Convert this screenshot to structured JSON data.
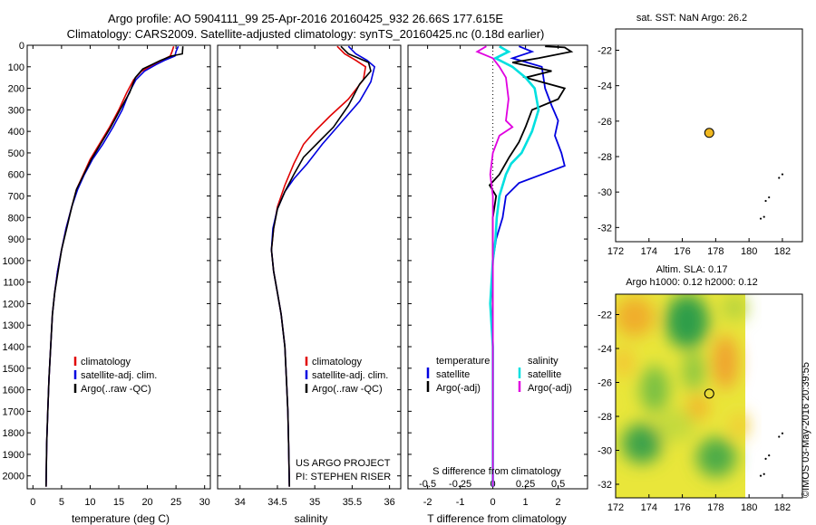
{
  "titles": {
    "line1": "Argo profile: AO 5904111_99 25-Apr-2016 20160425_932 26.66S 177.615E",
    "line2": "Climatology: CARS2009. Satellite-adjusted climatology: synTS_20160425.nc (0.18d earlier)"
  },
  "depth_ticks": [
    "0",
    "100",
    "200",
    "300",
    "400",
    "500",
    "600",
    "700",
    "800",
    "900",
    "1000",
    "1100",
    "1200",
    "1300",
    "1400",
    "1500",
    "1600",
    "1700",
    "1800",
    "1900",
    "2000"
  ],
  "temp_panel": {
    "xlabel": "temperature (deg C)",
    "xticks": [
      "0",
      "5",
      "10",
      "15",
      "20",
      "25",
      "30"
    ],
    "legend": [
      "climatology",
      "satellite-adj. clim.",
      "Argo(..raw -QC)"
    ]
  },
  "sal_panel": {
    "xlabel": "salinity",
    "xticks": [
      "34",
      "34.5",
      "35",
      "35.5",
      "36"
    ],
    "legend": [
      "climatology",
      "satellite-adj. clim.",
      "Argo(..raw -QC)"
    ],
    "project_line1": "US ARGO PROJECT",
    "project_line2": "PI: STEPHEN RISER"
  },
  "diff_panel": {
    "xlabel": "T difference from climatology",
    "top_label": "S difference from climatology",
    "xticks_t": [
      "-2",
      "-1",
      "0",
      "1",
      "2"
    ],
    "xticks_s": [
      "-0.5",
      "-0.25",
      "0",
      "0.25",
      "0.5"
    ],
    "legend_temp_head": "temperature",
    "legend_sal_head": "salinity",
    "legend_temp": [
      "satellite",
      "Argo(-adj)"
    ],
    "legend_sal": [
      "satellite",
      "Argo(-adj)"
    ]
  },
  "map_sst": {
    "title": "sat. SST: NaN Argo: 26.2",
    "xticks": [
      "172",
      "174",
      "176",
      "178",
      "180",
      "182"
    ],
    "yticks": [
      "-22",
      "-24",
      "-26",
      "-28",
      "-30",
      "-32"
    ]
  },
  "map_sla": {
    "title1": "Altim. SLA: 0.17",
    "title2": "Argo h1000: 0.12 h2000: 0.12",
    "xticks": [
      "172",
      "174",
      "176",
      "178",
      "180",
      "182"
    ],
    "yticks": [
      "-22",
      "-24",
      "-26",
      "-28",
      "-30",
      "-32"
    ]
  },
  "side_stamp": "©IMOS 03-May-2016 20:39:55",
  "colors": {
    "clim": "#e00000",
    "sat": "#0000e0",
    "argo": "#000000",
    "sal_sat": "#00e0e0",
    "sal_argo": "#e000e0",
    "float_marker": "#f0b820"
  },
  "chart_data": [
    {
      "type": "line",
      "panel": "temperature",
      "ylim": [
        2060,
        0
      ],
      "xlim": [
        -1,
        31
      ],
      "series": [
        {
          "name": "climatology",
          "points": [
            [
              24.6,
              5
            ],
            [
              24.3,
              30
            ],
            [
              24.0,
              50
            ],
            [
              22.5,
              70
            ],
            [
              21.0,
              90
            ],
            [
              19.0,
              120
            ],
            [
              17.6,
              160
            ],
            [
              16.4,
              220
            ],
            [
              15.0,
              300
            ],
            [
              13.4,
              380
            ],
            [
              11.6,
              460
            ],
            [
              10.0,
              530
            ],
            [
              8.8,
              600
            ],
            [
              7.6,
              670
            ],
            [
              6.8,
              750
            ],
            [
              5.8,
              850
            ],
            [
              5.0,
              950
            ],
            [
              4.3,
              1050
            ],
            [
              3.8,
              1150
            ],
            [
              3.4,
              1250
            ],
            [
              3.1,
              1400
            ],
            [
              2.8,
              1550
            ],
            [
              2.6,
              1700
            ],
            [
              2.4,
              1850
            ],
            [
              2.3,
              2050
            ]
          ]
        },
        {
          "name": "satellite-adj. clim.",
          "points": [
            [
              25.4,
              5
            ],
            [
              25.0,
              30
            ],
            [
              24.8,
              50
            ],
            [
              23.0,
              70
            ],
            [
              21.5,
              90
            ],
            [
              19.5,
              120
            ],
            [
              18.0,
              160
            ],
            [
              16.8,
              220
            ],
            [
              15.6,
              300
            ],
            [
              14.0,
              380
            ],
            [
              12.2,
              460
            ],
            [
              10.4,
              530
            ],
            [
              9.0,
              600
            ],
            [
              7.8,
              670
            ],
            [
              6.8,
              750
            ],
            [
              5.8,
              850
            ],
            [
              5.0,
              950
            ],
            [
              4.3,
              1050
            ],
            [
              3.8,
              1150
            ],
            [
              3.4,
              1250
            ],
            [
              3.1,
              1400
            ],
            [
              2.8,
              1550
            ],
            [
              2.6,
              1700
            ],
            [
              2.4,
              1850
            ],
            [
              2.3,
              2050
            ]
          ]
        },
        {
          "name": "Argo(..raw -QC)",
          "points": [
            [
              26.2,
              5
            ],
            [
              26.1,
              40
            ],
            [
              24.2,
              50
            ],
            [
              22.3,
              70
            ],
            [
              20.8,
              90
            ],
            [
              19.2,
              110
            ],
            [
              17.9,
              150
            ],
            [
              16.9,
              220
            ],
            [
              15.2,
              300
            ],
            [
              13.6,
              380
            ],
            [
              11.8,
              460
            ],
            [
              10.2,
              530
            ],
            [
              8.9,
              600
            ],
            [
              7.6,
              670
            ],
            [
              6.8,
              750
            ],
            [
              5.9,
              850
            ],
            [
              5.0,
              950
            ],
            [
              4.4,
              1050
            ],
            [
              3.8,
              1150
            ],
            [
              3.4,
              1250
            ],
            [
              3.1,
              1400
            ],
            [
              2.8,
              1550
            ],
            [
              2.6,
              1700
            ],
            [
              2.4,
              1850
            ],
            [
              2.3,
              2050
            ]
          ]
        }
      ]
    },
    {
      "type": "line",
      "panel": "salinity",
      "ylim": [
        2060,
        0
      ],
      "xlim": [
        33.7,
        36.15
      ],
      "series": [
        {
          "name": "climatology",
          "points": [
            [
              35.3,
              5
            ],
            [
              35.4,
              40
            ],
            [
              35.55,
              70
            ],
            [
              35.68,
              100
            ],
            [
              35.65,
              160
            ],
            [
              35.45,
              250
            ],
            [
              35.2,
              330
            ],
            [
              35.0,
              400
            ],
            [
              34.85,
              460
            ],
            [
              34.72,
              550
            ],
            [
              34.6,
              650
            ],
            [
              34.5,
              750
            ],
            [
              34.45,
              850
            ],
            [
              34.42,
              950
            ],
            [
              34.45,
              1050
            ],
            [
              34.5,
              1150
            ],
            [
              34.55,
              1250
            ],
            [
              34.6,
              1400
            ],
            [
              34.62,
              1550
            ],
            [
              34.64,
              1700
            ],
            [
              34.65,
              1850
            ],
            [
              34.66,
              2050
            ]
          ]
        },
        {
          "name": "satellite-adj. clim.",
          "points": [
            [
              35.45,
              5
            ],
            [
              35.55,
              40
            ],
            [
              35.7,
              70
            ],
            [
              35.8,
              100
            ],
            [
              35.75,
              170
            ],
            [
              35.6,
              260
            ],
            [
              35.35,
              360
            ],
            [
              35.1,
              460
            ],
            [
              34.9,
              550
            ],
            [
              34.72,
              620
            ],
            [
              34.6,
              680
            ],
            [
              34.5,
              760
            ],
            [
              34.44,
              850
            ],
            [
              34.42,
              950
            ],
            [
              34.45,
              1050
            ],
            [
              34.5,
              1150
            ],
            [
              34.55,
              1250
            ],
            [
              34.6,
              1400
            ],
            [
              34.62,
              1550
            ],
            [
              34.64,
              1700
            ],
            [
              34.65,
              1850
            ],
            [
              34.66,
              2050
            ]
          ]
        },
        {
          "name": "Argo(..raw -QC)",
          "points": [
            [
              35.35,
              5
            ],
            [
              35.45,
              40
            ],
            [
              35.72,
              80
            ],
            [
              35.75,
              120
            ],
            [
              35.6,
              180
            ],
            [
              35.45,
              280
            ],
            [
              35.25,
              380
            ],
            [
              35.05,
              450
            ],
            [
              34.85,
              520
            ],
            [
              34.72,
              600
            ],
            [
              34.6,
              680
            ],
            [
              34.5,
              760
            ],
            [
              34.45,
              850
            ],
            [
              34.42,
              950
            ],
            [
              34.45,
              1050
            ],
            [
              34.5,
              1150
            ],
            [
              34.55,
              1250
            ],
            [
              34.6,
              1400
            ],
            [
              34.62,
              1550
            ],
            [
              34.64,
              1700
            ],
            [
              34.65,
              1850
            ],
            [
              34.66,
              2050
            ]
          ]
        }
      ]
    },
    {
      "type": "line",
      "panel": "difference",
      "ylim": [
        2060,
        0
      ],
      "xlim_t": [
        -2.6,
        2.9
      ],
      "xlim_s": [
        -0.65,
        0.725
      ],
      "series": [
        {
          "name": "temperature satellite",
          "axis": "t",
          "points": [
            [
              0.8,
              5
            ],
            [
              1.2,
              30
            ],
            [
              0.6,
              60
            ],
            [
              1.5,
              100
            ],
            [
              1.6,
              200
            ],
            [
              1.8,
              280
            ],
            [
              2.0,
              350
            ],
            [
              1.9,
              420
            ],
            [
              2.1,
              500
            ],
            [
              2.2,
              560
            ],
            [
              1.5,
              600
            ],
            [
              0.8,
              640
            ],
            [
              0.4,
              700
            ],
            [
              0.3,
              800
            ],
            [
              0.1,
              900
            ],
            [
              0.0,
              1000
            ],
            [
              0.0,
              1200
            ],
            [
              0.0,
              1600
            ],
            [
              0.0,
              2050
            ]
          ]
        },
        {
          "name": "temperature Argo(-adj)",
          "axis": "t",
          "points": [
            [
              1.6,
              5
            ],
            [
              2.2,
              10
            ],
            [
              2.4,
              30
            ],
            [
              1.4,
              60
            ],
            [
              0.6,
              80
            ],
            [
              1.8,
              120
            ],
            [
              1.0,
              150
            ],
            [
              2.2,
              200
            ],
            [
              2.0,
              250
            ],
            [
              1.2,
              300
            ],
            [
              1.0,
              380
            ],
            [
              0.8,
              450
            ],
            [
              0.5,
              520
            ],
            [
              0.2,
              600
            ],
            [
              -0.1,
              650
            ],
            [
              0.1,
              700
            ],
            [
              0.0,
              800
            ],
            [
              0.0,
              900
            ],
            [
              0.0,
              1100
            ],
            [
              0.0,
              1400
            ],
            [
              0.0,
              2050
            ]
          ]
        },
        {
          "name": "salinity satellite",
          "axis": "s",
          "points": [
            [
              0.05,
              5
            ],
            [
              0.12,
              30
            ],
            [
              0.02,
              60
            ],
            [
              0.15,
              100
            ],
            [
              0.25,
              150
            ],
            [
              0.32,
              200
            ],
            [
              0.35,
              300
            ],
            [
              0.3,
              400
            ],
            [
              0.22,
              500
            ],
            [
              0.14,
              550
            ],
            [
              0.1,
              600
            ],
            [
              0.05,
              700
            ],
            [
              0.03,
              800
            ],
            [
              0.02,
              900
            ],
            [
              0.0,
              1000
            ],
            [
              -0.02,
              1200
            ],
            [
              0.0,
              1400
            ],
            [
              0.0,
              2050
            ]
          ]
        },
        {
          "name": "salinity Argo(-adj)",
          "axis": "s",
          "points": [
            [
              -0.05,
              5
            ],
            [
              -0.12,
              30
            ],
            [
              0.0,
              60
            ],
            [
              0.05,
              100
            ],
            [
              0.1,
              150
            ],
            [
              0.12,
              250
            ],
            [
              0.1,
              350
            ],
            [
              0.15,
              380
            ],
            [
              0.05,
              420
            ],
            [
              0.0,
              500
            ],
            [
              -0.02,
              600
            ],
            [
              0.0,
              700
            ],
            [
              0.0,
              900
            ],
            [
              0.0,
              1200
            ],
            [
              0.0,
              2050
            ]
          ]
        }
      ]
    },
    {
      "type": "scatter",
      "panel": "map_sst",
      "xlim": [
        172,
        183.2
      ],
      "ylim": [
        -20.8,
        -32.8
      ],
      "float_position": [
        177.615,
        -26.66
      ],
      "coast_points": [
        [
          181.8,
          -29.2
        ],
        [
          182.0,
          -29.0
        ],
        [
          181.2,
          -30.3
        ],
        [
          181.0,
          -30.5
        ],
        [
          180.9,
          -31.4
        ],
        [
          180.7,
          -31.5
        ]
      ]
    },
    {
      "type": "heatmap",
      "panel": "map_sla",
      "xlim": [
        172,
        183.2
      ],
      "ylim": [
        -20.8,
        -32.8
      ],
      "float_position": [
        177.615,
        -26.66
      ],
      "coast_points": [
        [
          181.8,
          -29.2
        ],
        [
          182.0,
          -29.0
        ],
        [
          181.2,
          -30.3
        ],
        [
          181.0,
          -30.5
        ],
        [
          180.9,
          -31.4
        ],
        [
          180.7,
          -31.5
        ]
      ]
    }
  ]
}
